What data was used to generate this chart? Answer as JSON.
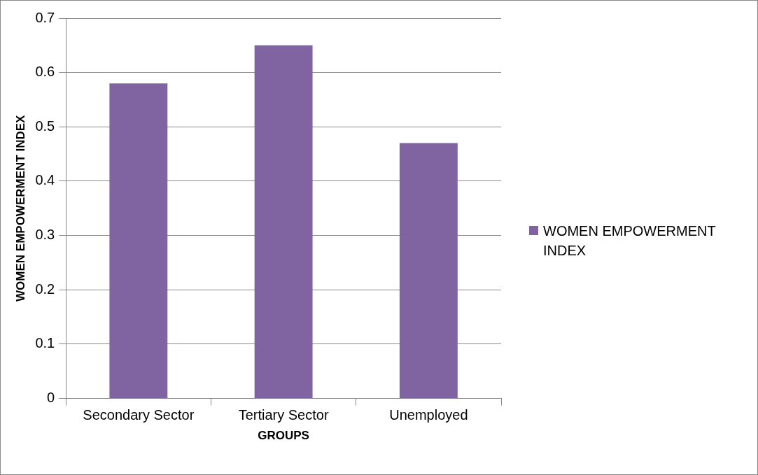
{
  "chart_data": {
    "type": "bar",
    "xlabel": "GROUPS",
    "ylabel": "WOMEN EMPOWERMENT INDEX",
    "categories": [
      "Secondary Sector",
      "Tertiary Sector",
      "Unemployed"
    ],
    "series": [
      {
        "name": "WOMEN EMPOWERMENT INDEX",
        "color": "#8064a2",
        "values": [
          0.58,
          0.65,
          0.47
        ]
      }
    ],
    "ylim": [
      0,
      0.7
    ],
    "yticks": [
      0,
      0.1,
      0.2,
      0.3,
      0.4,
      0.5,
      0.6,
      0.7
    ],
    "grid": "y",
    "legend": "right"
  }
}
